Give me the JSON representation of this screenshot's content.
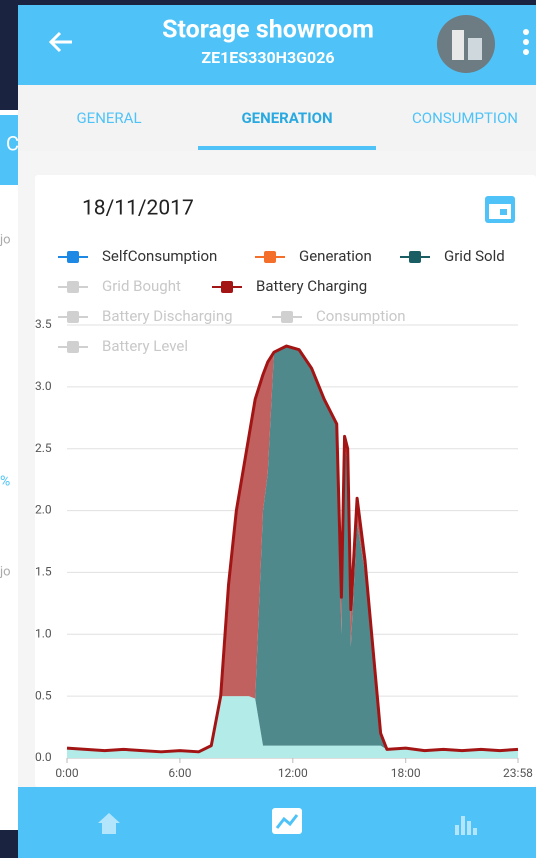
{
  "background": {
    "fragments": [
      "C",
      "jo",
      "%",
      "jo"
    ]
  },
  "header": {
    "title": "Storage showroom",
    "subtitle": "ZE1ES330H3G026"
  },
  "tabs": [
    "GENERAL",
    "GENERATION",
    "CONSUMPTION"
  ],
  "date": "18/11/2017",
  "chart_data": {
    "type": "stacked-area",
    "x": [
      0,
      60,
      120,
      180,
      240,
      300,
      360,
      420,
      460,
      490,
      515,
      540,
      580,
      600,
      625,
      640,
      660,
      700,
      740,
      780,
      820,
      860,
      875,
      885,
      895,
      905,
      925,
      950,
      975,
      1000,
      1020,
      1080,
      1140,
      1200,
      1260,
      1320,
      1380,
      1438
    ],
    "xlim": [
      0,
      1438
    ],
    "xticks": [
      {
        "value": 0,
        "label": "0:00"
      },
      {
        "value": 360,
        "label": "6:00"
      },
      {
        "value": 720,
        "label": "12:00"
      },
      {
        "value": 1080,
        "label": "18:00"
      },
      {
        "value": 1438,
        "label": "23:58"
      }
    ],
    "ylim": [
      0,
      3.5
    ],
    "yticks": [
      {
        "value": 0,
        "label": "0.0"
      },
      {
        "value": 0.5,
        "label": "0.5"
      },
      {
        "value": 1,
        "label": "1.0"
      },
      {
        "value": 1.5,
        "label": "1.5"
      },
      {
        "value": 2,
        "label": "2.0"
      },
      {
        "value": 2.5,
        "label": "2.5"
      },
      {
        "value": 3,
        "label": "3.0"
      },
      {
        "value": 3.5,
        "label": "3.5"
      }
    ],
    "grid": true,
    "series": [
      {
        "name": "SelfConsumption",
        "color": "#1e88e5",
        "fill": "#b2ebe8",
        "visible": true,
        "values": [
          0.08,
          0.07,
          0.06,
          0.07,
          0.06,
          0.05,
          0.06,
          0.05,
          0.1,
          0.5,
          0.5,
          0.5,
          0.5,
          0.48,
          0.1,
          0.1,
          0.1,
          0.1,
          0.1,
          0.1,
          0.1,
          0.1,
          0.1,
          0.1,
          0.1,
          0.1,
          0.1,
          0.1,
          0.1,
          0.1,
          0.07,
          0.08,
          0.06,
          0.07,
          0.06,
          0.07,
          0.06,
          0.07
        ]
      },
      {
        "name": "Generation",
        "color": "#f4702a",
        "visible": true
      },
      {
        "name": "Grid Sold",
        "color": "#1a5e63",
        "fill": "#4f898c",
        "visible": true,
        "values": [
          0,
          0,
          0,
          0,
          0,
          0,
          0,
          0,
          0,
          0,
          0,
          0,
          0,
          0,
          1.9,
          2.2,
          3.18,
          3.23,
          3.2,
          3.05,
          2.8,
          2.6,
          0.9,
          2.4,
          2.3,
          0.8,
          1.8,
          1.4,
          0.8,
          0.1,
          0,
          0,
          0,
          0,
          0,
          0,
          0,
          0
        ]
      },
      {
        "name": "Grid Bought",
        "color": "#d0d0d0",
        "visible": false
      },
      {
        "name": "Battery Charging",
        "color": "#a31515",
        "fill": "#c0605f",
        "visible": true,
        "values": [
          0,
          0,
          0,
          0,
          0,
          0,
          0,
          0,
          0,
          0,
          0.9,
          1.5,
          2.1,
          2.42,
          1.1,
          0.9,
          0,
          0,
          0,
          0,
          0,
          0,
          0.3,
          0.1,
          0.1,
          0.3,
          0.2,
          0.1,
          0,
          0,
          0,
          0,
          0,
          0,
          0,
          0,
          0,
          0
        ]
      },
      {
        "name": "Battery Discharging",
        "color": "#d0d0d0",
        "visible": false
      },
      {
        "name": "Consumption",
        "color": "#d0d0d0",
        "visible": false
      },
      {
        "name": "Battery Level",
        "color": "#d0d0d0",
        "visible": false
      }
    ]
  }
}
